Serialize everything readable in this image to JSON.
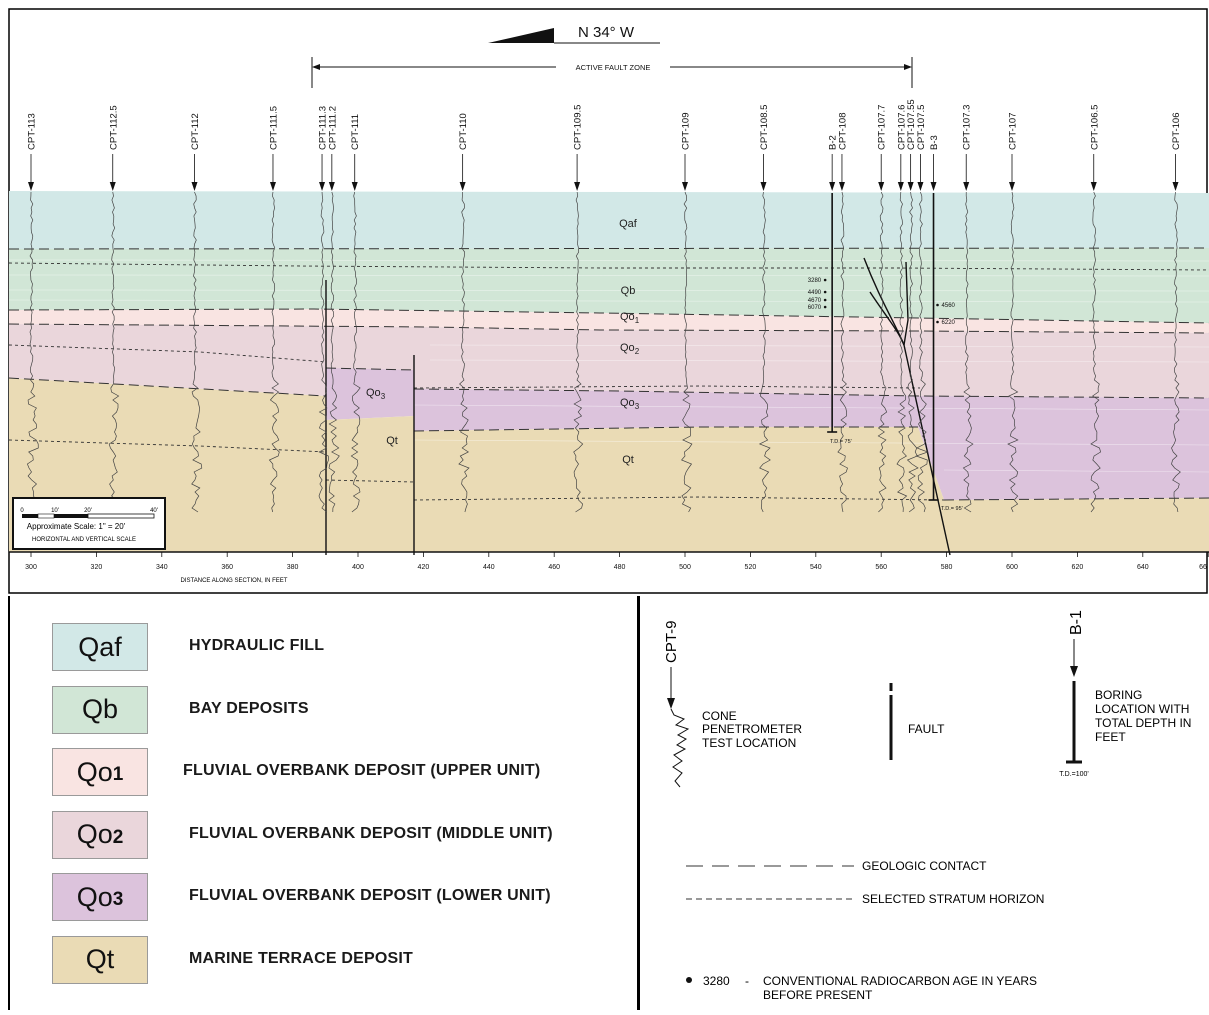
{
  "title": {
    "orientation": "N 34° W",
    "fault_zone": "ACTIVE FAULT ZONE"
  },
  "cpts": [
    "CPT-113",
    "CPT-112.5",
    "CPT-112",
    "CPT-111.5",
    "CPT-111.3",
    "CPT-111.2",
    "CPT-111",
    "CPT-110",
    "CPT-109.5",
    "CPT-109",
    "CPT-108.5",
    "B-2",
    "CPT-108",
    "CPT-107.7",
    "CPT-107.6",
    "CPT-107.55",
    "CPT-107.5",
    "B-3",
    "CPT-107.3",
    "CPT-107",
    "CPT-106.5",
    "CPT-106"
  ],
  "cpt_positions": [
    300,
    325,
    350,
    374,
    389,
    392,
    399,
    432,
    467,
    500,
    524,
    545,
    548,
    560,
    566,
    569,
    572,
    576,
    586,
    600,
    625,
    650
  ],
  "units_on_section": {
    "qaf": "Qaf",
    "qb": "Qb",
    "qo1_base": "Qo",
    "qo1_sub": "1",
    "qo2_base": "Qo",
    "qo2_sub": "2",
    "qo3_base": "Qo",
    "qo3_sub": "3",
    "qt": "Qt",
    "qo3_left_base": "Qo",
    "qo3_left_sub": "3",
    "qt_left": "Qt"
  },
  "radiocarbon_ages": {
    "b2": [
      "3280",
      "4490",
      "4670",
      "6070"
    ],
    "b3": [
      "4560",
      "6220"
    ]
  },
  "total_depths": {
    "b2": "T.D.= 75'",
    "b3": "T.D.= 95'"
  },
  "scale": {
    "ticks": [
      "0",
      "10'",
      "20'",
      "40'"
    ],
    "caption": "Approximate Scale: 1\" = 20'",
    "note": "HORIZONTAL AND VERTICAL SCALE"
  },
  "x_axis": {
    "ticks": [
      "300",
      "320",
      "340",
      "360",
      "380",
      "400",
      "420",
      "440",
      "460",
      "480",
      "500",
      "520",
      "540",
      "560",
      "580",
      "600",
      "620",
      "640",
      "66"
    ],
    "label": "DISTANCE ALONG SECTION, IN FEET"
  },
  "legend": [
    {
      "symbol": "Qaf",
      "sub": "",
      "label": "HYDRAULIC FILL",
      "color": "#d2e8e7"
    },
    {
      "symbol": "Qb",
      "sub": "",
      "label": "BAY DEPOSITS",
      "color": "#d1e6d6"
    },
    {
      "symbol": "Qo",
      "sub": "1",
      "label": "FLUVIAL OVERBANK DEPOSIT (UPPER UNIT)",
      "color": "#f9e4e2"
    },
    {
      "symbol": "Qo",
      "sub": "2",
      "label": "FLUVIAL OVERBANK DEPOSIT (MIDDLE UNIT)",
      "color": "#ead6db"
    },
    {
      "symbol": "Qo",
      "sub": "3",
      "label": "FLUVIAL OVERBANK DEPOSIT (LOWER UNIT)",
      "color": "#dcc3dc"
    },
    {
      "symbol": "Qt",
      "sub": "",
      "label": "MARINE TERRACE DEPOSIT",
      "color": "#eadbb5"
    }
  ],
  "symbols": {
    "cpt_label": "CPT-9",
    "cpt_desc": [
      "CONE",
      "PENETROMETER",
      "TEST LOCATION"
    ],
    "fault_desc": "FAULT",
    "boring_label": "B-1",
    "boring_desc": [
      "BORING",
      "LOCATION WITH",
      "TOTAL DEPTH IN",
      "FEET"
    ],
    "boring_td": "T.D.=100'",
    "contact": "GEOLOGIC CONTACT",
    "horizon": "SELECTED STRATUM HORIZON",
    "age_value": "3280",
    "age_dash": "-",
    "age_desc": [
      "CONVENTIONAL RADIOCARBON AGE IN YEARS",
      "BEFORE PRESENT"
    ]
  }
}
